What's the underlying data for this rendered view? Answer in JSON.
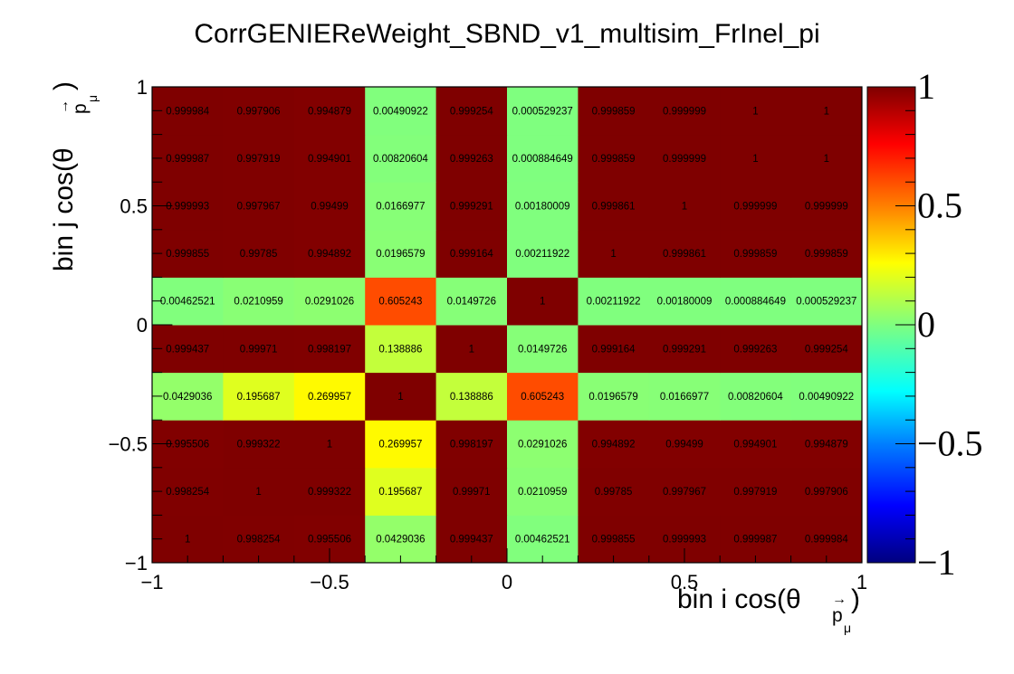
{
  "chart_data": {
    "type": "heatmap",
    "title": "CorrGENIEReWeight_SBND_v1_multisim_FrInel_pi",
    "xlabel": "bin i cos(θ",
    "xlabel_sub": "p",
    "xlabel_subsub": "μ",
    "xlabel_close": ")",
    "ylabel": "bin j cos(θ",
    "ylabel_sub": "p",
    "ylabel_subsub": "μ",
    "ylabel_close": ")",
    "xlim": [
      -1,
      1
    ],
    "ylim": [
      -1,
      1
    ],
    "zlim": [
      -1,
      1
    ],
    "x_ticks": [
      "−1",
      "−0.5",
      "0",
      "0.5",
      "1"
    ],
    "y_ticks": [
      "−1",
      "−0.5",
      "0",
      "0.5",
      "1"
    ],
    "colorbar_ticks": [
      "−1",
      "−0.5",
      "0",
      "0.5",
      "1"
    ],
    "nx": 10,
    "ny": 10,
    "rows": [
      {
        "values": [
          1,
          0.998254,
          0.995506,
          0.0429036,
          0.999437,
          0.00462521,
          0.999855,
          0.999993,
          0.999987,
          0.999984
        ],
        "labels": [
          "1",
          "0.998254",
          "0.995506",
          "0.0429036",
          "0.999437",
          "0.00462521",
          "0.999855",
          "0.999993",
          "0.999987",
          "0.999984"
        ]
      },
      {
        "values": [
          0.998254,
          1,
          0.999322,
          0.195687,
          0.99971,
          0.0210959,
          0.99785,
          0.997967,
          0.997919,
          0.997906
        ],
        "labels": [
          "0.998254",
          "1",
          "0.999322",
          "0.195687",
          "0.99971",
          "0.0210959",
          "0.99785",
          "0.997967",
          "0.997919",
          "0.997906"
        ]
      },
      {
        "values": [
          0.995506,
          0.999322,
          1,
          0.269957,
          0.998197,
          0.0291026,
          0.994892,
          0.99499,
          0.994901,
          0.994879
        ],
        "labels": [
          "0.995506",
          "0.999322",
          "1",
          "0.269957",
          "0.998197",
          "0.0291026",
          "0.994892",
          "0.99499",
          "0.994901",
          "0.994879"
        ]
      },
      {
        "values": [
          0.0429036,
          0.195687,
          0.269957,
          1,
          0.138886,
          0.605243,
          0.0196579,
          0.0166977,
          0.00820604,
          0.00490922
        ],
        "labels": [
          "0.0429036",
          "0.195687",
          "0.269957",
          "1",
          "0.138886",
          "0.605243",
          "0.0196579",
          "0.0166977",
          "0.00820604",
          "0.00490922"
        ]
      },
      {
        "values": [
          0.999437,
          0.99971,
          0.998197,
          0.138886,
          1,
          0.0149726,
          0.999164,
          0.999291,
          0.999263,
          0.999254
        ],
        "labels": [
          "0.999437",
          "0.99971",
          "0.998197",
          "0.138886",
          "1",
          "0.0149726",
          "0.999164",
          "0.999291",
          "0.999263",
          "0.999254"
        ]
      },
      {
        "values": [
          0.00462521,
          0.0210959,
          0.0291026,
          0.605243,
          0.0149726,
          1,
          0.00211922,
          0.00180009,
          0.000884649,
          0.000529237
        ],
        "labels": [
          "0.00462521",
          "0.0210959",
          "0.0291026",
          "0.605243",
          "0.0149726",
          "1",
          "0.00211922",
          "0.00180009",
          "0.000884649",
          "0.000529237"
        ]
      },
      {
        "values": [
          0.999855,
          0.99785,
          0.994892,
          0.0196579,
          0.999164,
          0.00211922,
          1,
          0.999861,
          0.999859,
          0.999859
        ],
        "labels": [
          "0.999855",
          "0.99785",
          "0.994892",
          "0.0196579",
          "0.999164",
          "0.00211922",
          "1",
          "0.999861",
          "0.999859",
          "0.999859"
        ]
      },
      {
        "values": [
          0.999993,
          0.997967,
          0.99499,
          0.0166977,
          0.999291,
          0.00180009,
          0.999861,
          1,
          0.999999,
          0.999999
        ],
        "labels": [
          "0.999993",
          "0.997967",
          "0.99499",
          "0.0166977",
          "0.999291",
          "0.00180009",
          "0.999861",
          "1",
          "0.999999",
          "0.999999"
        ]
      },
      {
        "values": [
          0.999987,
          0.997919,
          0.994901,
          0.00820604,
          0.999263,
          0.000884649,
          0.999859,
          0.999999,
          1,
          1
        ],
        "labels": [
          "0.999987",
          "0.997919",
          "0.994901",
          "0.00820604",
          "0.999263",
          "0.000884649",
          "0.999859",
          "0.999999",
          "1",
          "1"
        ]
      },
      {
        "values": [
          0.999984,
          0.997906,
          0.994879,
          0.00490922,
          0.999254,
          0.000529237,
          0.999859,
          0.999999,
          1,
          1
        ],
        "labels": [
          "0.999984",
          "0.997906",
          "0.994879",
          "0.00490922",
          "0.999254",
          "0.000529237",
          "0.999859",
          "0.999999",
          "1",
          "1"
        ]
      }
    ]
  }
}
